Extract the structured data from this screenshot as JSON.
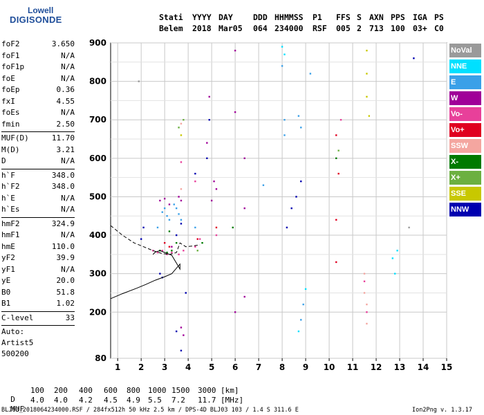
{
  "logo": {
    "top": "Lowell",
    "main": "DIGISONDE"
  },
  "header": {
    "labels": [
      "Stati",
      "YYYY",
      "DAY",
      "DDD",
      "HHMMSS",
      "P1",
      "FFS",
      "S",
      "AXN",
      "PPS",
      "IGA",
      "PS"
    ],
    "values": [
      "Belem",
      "2018",
      "Mar05",
      "064",
      "234000",
      "RSF",
      "005",
      "2",
      "713",
      "100",
      "03+",
      "C0"
    ]
  },
  "params": [
    {
      "name": "foF2",
      "value": "3.650"
    },
    {
      "name": "foF1",
      "value": "N/A"
    },
    {
      "name": "foF1p",
      "value": "N/A"
    },
    {
      "name": "foE",
      "value": "N/A"
    },
    {
      "name": "foEp",
      "value": "0.36"
    },
    {
      "name": "fxI",
      "value": "4.55"
    },
    {
      "name": "foEs",
      "value": "N/A"
    },
    {
      "name": "fmin",
      "value": "2.50"
    },
    {
      "name": "MUF(D)",
      "value": "11.70"
    },
    {
      "name": "M(D)",
      "value": "3.21"
    },
    {
      "name": "D",
      "value": "N/A"
    },
    {
      "name": "h`F",
      "value": "348.0"
    },
    {
      "name": "h`F2",
      "value": "348.0"
    },
    {
      "name": "h`E",
      "value": "N/A"
    },
    {
      "name": "h`Es",
      "value": "N/A"
    },
    {
      "name": "hmF2",
      "value": "324.9"
    },
    {
      "name": "hmF1",
      "value": "N/A"
    },
    {
      "name": "hmE",
      "value": "110.0"
    },
    {
      "name": "yF2",
      "value": "39.9"
    },
    {
      "name": "yF1",
      "value": "N/A"
    },
    {
      "name": "yE",
      "value": "20.0"
    },
    {
      "name": "B0",
      "value": "51.8"
    },
    {
      "name": "B1",
      "value": "1.02"
    },
    {
      "name": "C-level",
      "value": "33"
    }
  ],
  "auto": [
    "Auto:",
    "Artist5",
    "500200"
  ],
  "legend": [
    {
      "label": "NoVal",
      "color": "#9a9a9a"
    },
    {
      "label": "NNE",
      "color": "#00e0ff"
    },
    {
      "label": "E",
      "color": "#3aa0e8"
    },
    {
      "label": "W",
      "color": "#a00098"
    },
    {
      "label": "Vo-",
      "color": "#e8409a"
    },
    {
      "label": "Vo+",
      "color": "#e00020"
    },
    {
      "label": "SSW",
      "color": "#f4a6a0"
    },
    {
      "label": "X-",
      "color": "#007a00"
    },
    {
      "label": "X+",
      "color": "#6cb040"
    },
    {
      "label": "SSE",
      "color": "#c8c800"
    },
    {
      "label": "NNW",
      "color": "#0000b0"
    }
  ],
  "mufTable": {
    "d_label": "D",
    "muf_label": "MUF",
    "d_values": [
      "100",
      "200",
      "400",
      "600",
      "800",
      "1000",
      "1500",
      "3000"
    ],
    "d_unit": "[km]",
    "muf_values": [
      "4.0",
      "4.0",
      "4.2",
      "4.5",
      "4.9",
      "5.5",
      "7.2",
      "11.7"
    ],
    "muf_unit": "[MHz]"
  },
  "footer": {
    "left": "BLJ03_2018064234000.RSF / 284fx512h 50 kHz 2.5 km / DPS-4D BLJ03 103 / 1.4 S 311.6 E",
    "right": "Ion2Png v. 1.3.17"
  },
  "chart_data": {
    "type": "scatter",
    "title": "",
    "xlabel": "",
    "ylabel": "",
    "xlim": [
      0.7,
      15.0
    ],
    "ylim": [
      80,
      900
    ],
    "x_ticks": [
      1,
      2,
      3,
      4,
      5,
      6,
      7,
      8,
      9,
      10,
      11,
      12,
      13,
      14,
      15
    ],
    "y_ticks": [
      80,
      200,
      300,
      400,
      500,
      600,
      700,
      800,
      900
    ],
    "grid": true,
    "legend_position": "right",
    "series": [
      {
        "name": "E",
        "color": "#3aa0e8",
        "points": [
          [
            2.9,
            460
          ],
          [
            3.0,
            470
          ],
          [
            3.1,
            450
          ],
          [
            3.2,
            440
          ],
          [
            3.5,
            470
          ],
          [
            3.6,
            455
          ],
          [
            3.7,
            440
          ],
          [
            4.3,
            420
          ],
          [
            7.2,
            530
          ],
          [
            8.0,
            840
          ],
          [
            8.1,
            700
          ],
          [
            8.1,
            660
          ],
          [
            8.7,
            710
          ],
          [
            8.8,
            680
          ],
          [
            8.9,
            220
          ],
          [
            8.8,
            180
          ],
          [
            9.2,
            820
          ],
          [
            2.7,
            420
          ],
          [
            3.4,
            480
          ]
        ]
      },
      {
        "name": "W",
        "color": "#a00098",
        "points": [
          [
            2.8,
            490
          ],
          [
            3.0,
            495
          ],
          [
            3.2,
            480
          ],
          [
            3.6,
            500
          ],
          [
            3.7,
            490
          ],
          [
            3.3,
            370
          ],
          [
            5.1,
            540
          ],
          [
            5.2,
            520
          ],
          [
            5.0,
            490
          ],
          [
            6.0,
            880
          ],
          [
            6.0,
            720
          ],
          [
            6.0,
            200
          ],
          [
            6.4,
            600
          ],
          [
            6.4,
            470
          ],
          [
            6.4,
            240
          ],
          [
            4.9,
            760
          ],
          [
            4.8,
            640
          ],
          [
            3.7,
            160
          ],
          [
            3.8,
            140
          ]
        ]
      },
      {
        "name": "Vo-",
        "color": "#e8409a",
        "points": [
          [
            2.5,
            360
          ],
          [
            2.7,
            355
          ],
          [
            2.9,
            360
          ],
          [
            3.1,
            350
          ],
          [
            3.3,
            355
          ],
          [
            3.6,
            350
          ],
          [
            3.8,
            360
          ],
          [
            4.3,
            370
          ],
          [
            4.5,
            390
          ],
          [
            5.2,
            400
          ],
          [
            3.7,
            590
          ],
          [
            4.3,
            540
          ],
          [
            10.5,
            700
          ],
          [
            11.5,
            280
          ],
          [
            11.6,
            200
          ]
        ]
      },
      {
        "name": "Vo+",
        "color": "#e00020",
        "points": [
          [
            3.0,
            380
          ],
          [
            3.2,
            370
          ],
          [
            4.4,
            390
          ],
          [
            5.2,
            420
          ],
          [
            10.3,
            660
          ],
          [
            10.3,
            440
          ],
          [
            10.3,
            330
          ],
          [
            10.4,
            560
          ]
        ]
      },
      {
        "name": "SSW",
        "color": "#f4a6a0",
        "points": [
          [
            3.7,
            520
          ],
          [
            3.7,
            690
          ],
          [
            11.5,
            250
          ],
          [
            11.6,
            220
          ],
          [
            11.6,
            170
          ],
          [
            11.5,
            300
          ]
        ]
      },
      {
        "name": "X-",
        "color": "#007a00",
        "points": [
          [
            2.8,
            360
          ],
          [
            3.1,
            355
          ],
          [
            3.3,
            360
          ],
          [
            3.5,
            380
          ],
          [
            3.2,
            410
          ],
          [
            5.9,
            420
          ],
          [
            10.3,
            600
          ],
          [
            4.6,
            380
          ]
        ]
      },
      {
        "name": "X+",
        "color": "#6cb040",
        "points": [
          [
            3.6,
            680
          ],
          [
            3.8,
            700
          ],
          [
            4.4,
            360
          ],
          [
            10.4,
            620
          ]
        ]
      },
      {
        "name": "SSE",
        "color": "#c8c800",
        "points": [
          [
            11.6,
            880
          ],
          [
            11.6,
            820
          ],
          [
            11.6,
            760
          ],
          [
            11.7,
            710
          ],
          [
            3.7,
            660
          ]
        ]
      },
      {
        "name": "NNW",
        "color": "#0000b0",
        "points": [
          [
            2.0,
            390
          ],
          [
            2.1,
            420
          ],
          [
            3.5,
            400
          ],
          [
            3.7,
            430
          ],
          [
            3.5,
            150
          ],
          [
            3.7,
            100
          ],
          [
            4.9,
            700
          ],
          [
            4.8,
            600
          ],
          [
            4.3,
            560
          ],
          [
            2.9,
            290
          ],
          [
            2.8,
            300
          ],
          [
            8.2,
            420
          ],
          [
            8.4,
            470
          ],
          [
            8.6,
            500
          ],
          [
            8.8,
            540
          ],
          [
            13.6,
            860
          ],
          [
            3.9,
            250
          ]
        ]
      },
      {
        "name": "NNE",
        "color": "#00e0ff",
        "points": [
          [
            8.0,
            890
          ],
          [
            8.1,
            870
          ],
          [
            12.7,
            340
          ],
          [
            12.8,
            300
          ],
          [
            12.9,
            360
          ],
          [
            9.0,
            260
          ],
          [
            8.7,
            150
          ]
        ]
      },
      {
        "name": "NoVal",
        "color": "#9a9a9a",
        "points": [
          [
            1.9,
            800
          ],
          [
            13.4,
            420
          ]
        ]
      }
    ],
    "curves": [
      {
        "name": "virtual-height-profile",
        "style": "solid",
        "points": [
          [
            0.7,
            235
          ],
          [
            1.2,
            248
          ],
          [
            1.8,
            262
          ],
          [
            2.2,
            272
          ],
          [
            2.6,
            283
          ],
          [
            3.0,
            292
          ],
          [
            3.3,
            300
          ],
          [
            3.65,
            325
          ],
          [
            3.65,
            312
          ],
          [
            3.3,
            348
          ],
          [
            3.0,
            355
          ],
          [
            2.8,
            360
          ],
          [
            2.6,
            356
          ],
          [
            2.5,
            350
          ]
        ]
      },
      {
        "name": "extrapolated-profile",
        "style": "dashed",
        "points": [
          [
            0.7,
            425
          ],
          [
            1.2,
            400
          ],
          [
            1.7,
            380
          ],
          [
            2.1,
            370
          ],
          [
            2.5,
            360
          ],
          [
            2.9,
            352
          ],
          [
            3.2,
            350
          ],
          [
            3.5,
            355
          ],
          [
            3.65,
            380
          ],
          [
            3.9,
            370
          ],
          [
            4.2,
            372
          ],
          [
            4.5,
            375
          ]
        ]
      }
    ]
  }
}
